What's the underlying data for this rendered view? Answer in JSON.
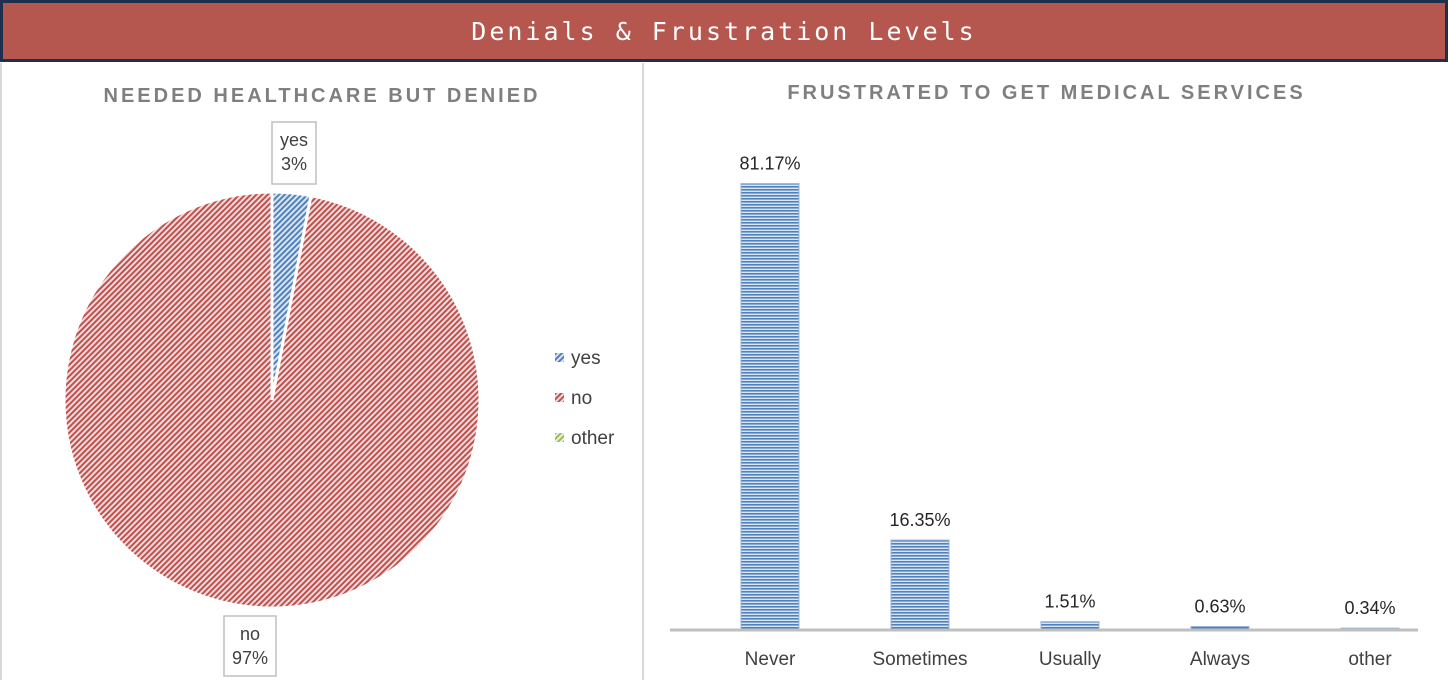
{
  "header": {
    "title": "Denials & Frustration Levels"
  },
  "colors": {
    "yes": "#4f81bd",
    "no": "#c0504d",
    "other": "#9bbb59",
    "banner": "#b5574f",
    "banner_border": "#1f2f4e",
    "title_gray": "#7f7f7f"
  },
  "chart_data": [
    {
      "type": "pie",
      "title": "NEEDED HEALTHCARE BUT DENIED",
      "legend_position": "right",
      "slices": [
        {
          "label": "yes",
          "value": 3,
          "display": "3%"
        },
        {
          "label": "no",
          "value": 97,
          "display": "97%"
        },
        {
          "label": "other",
          "value": 0,
          "display": ""
        }
      ]
    },
    {
      "type": "bar",
      "title": "FRUSTRATED TO GET MEDICAL SERVICES",
      "categories": [
        "Never",
        "Sometimes",
        "Usually",
        "Always",
        "other"
      ],
      "values": [
        81.17,
        16.35,
        1.51,
        0.63,
        0.34
      ],
      "value_labels": [
        "81.17%",
        "16.35%",
        "1.51%",
        "0.63%",
        "0.34%"
      ],
      "ylim": [
        0,
        100
      ],
      "grid": false
    }
  ]
}
